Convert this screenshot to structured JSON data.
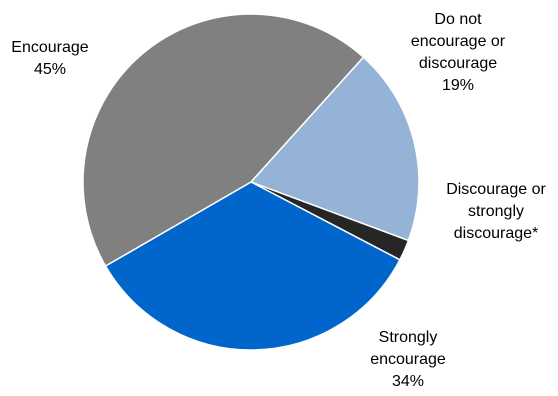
{
  "chart_data": {
    "type": "pie",
    "title": "",
    "start_angle_deg": -48,
    "direction": "clockwise",
    "slices": [
      {
        "name": "Do not encourage or discourage",
        "value": 19,
        "label_lines": [
          "Do not",
          "encourage or",
          "discourage",
          "19%"
        ],
        "color": "#95b3d7"
      },
      {
        "name": "Discourage or strongly discourage*",
        "value": 2,
        "label_lines": [
          "Discourage or",
          "strongly",
          "discourage*"
        ],
        "color": "#262626"
      },
      {
        "name": "Strongly encourage",
        "value": 34,
        "label_lines": [
          "Strongly",
          "encourage",
          "34%"
        ],
        "color": "#0066cc"
      },
      {
        "name": "Encourage",
        "value": 45,
        "label_lines": [
          "Encourage",
          "45%"
        ],
        "color": "#808080"
      }
    ],
    "legend": "none",
    "border_color": "#ffffff"
  }
}
